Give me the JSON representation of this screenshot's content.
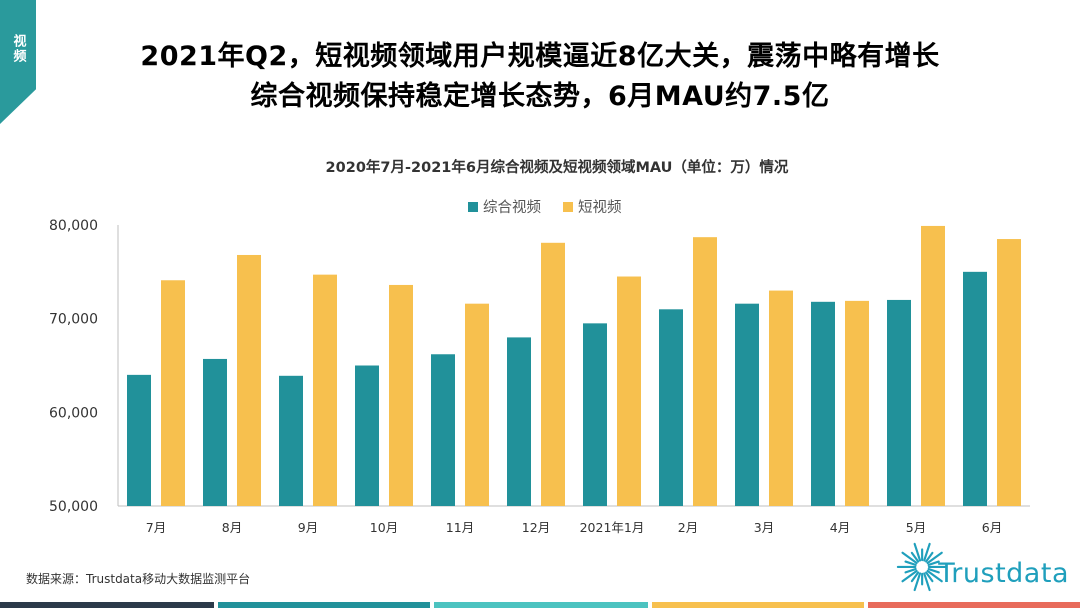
{
  "section_tag": "视频",
  "headline": {
    "line1": "2021年Q2，短视频领域用户规模逼近8亿大关，震荡中略有增长",
    "line2": "综合视频保持稳定增长态势，6月MAU约7.5亿"
  },
  "source_note": "数据来源：Trustdata移动大数据监测平台",
  "logo_text": "Trustdata",
  "colors": {
    "series1": "#21919a",
    "series2": "#f7c04e",
    "tag": "#2a9a9c",
    "logo": "#1f9fbc"
  },
  "chart_data": {
    "type": "bar",
    "title": "2020年7月-2021年6月综合视频及短视频领域MAU（单位：万）情况",
    "categories": [
      "7月",
      "8月",
      "9月",
      "10月",
      "11月",
      "12月",
      "2021年1月",
      "2月",
      "3月",
      "4月",
      "5月",
      "6月"
    ],
    "series": [
      {
        "name": "综合视频",
        "values": [
          64000,
          65700,
          63900,
          65000,
          66200,
          68000,
          69500,
          71000,
          71600,
          71800,
          72000,
          75000
        ]
      },
      {
        "name": "短视频",
        "values": [
          74100,
          76800,
          74700,
          73600,
          71600,
          78100,
          74500,
          78700,
          73000,
          71900,
          79900,
          78500
        ]
      }
    ],
    "ylim": [
      50000,
      80000
    ],
    "yticks": [
      50000,
      60000,
      70000,
      80000
    ],
    "ytick_labels": [
      "50,000",
      "60,000",
      "70,000",
      "80,000"
    ],
    "xlabel": "",
    "ylabel": "",
    "legend_position": "top-center"
  }
}
